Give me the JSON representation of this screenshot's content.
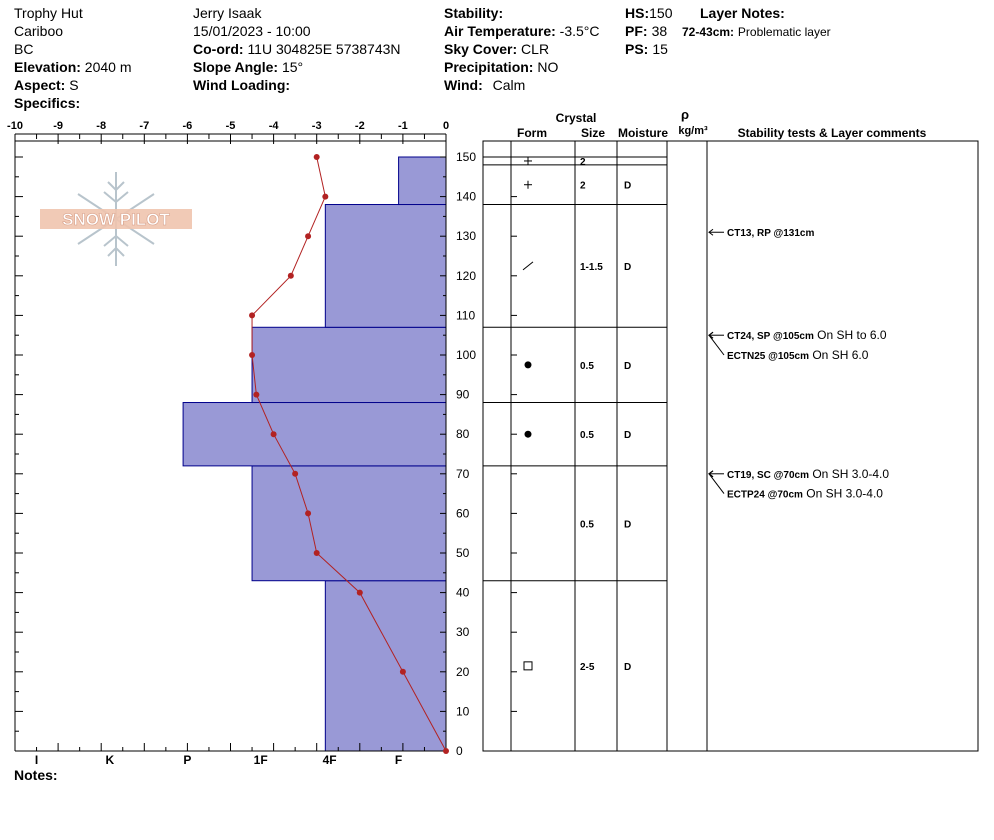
{
  "header": {
    "col1": {
      "site": "Trophy Hut",
      "region": "Cariboo",
      "province": "BC",
      "elevation_label": "Elevation:",
      "elevation_value": "2040 m",
      "aspect_label": "Aspect:",
      "aspect_value": "S",
      "specifics_label": "Specifics:"
    },
    "col2": {
      "observer": "Jerry Isaak",
      "datetime": "15/01/2023 - 10:00",
      "coord_label": "Co-ord:",
      "coord_value": "11U 304825E 5738743N",
      "slope_label": "Slope Angle:",
      "slope_value": "15°",
      "wind_loading_label": "Wind Loading:"
    },
    "col3": {
      "stability_label": "Stability:",
      "air_temp_label": "Air Temperature:",
      "air_temp_value": "-3.5°C",
      "sky_label": "Sky Cover:",
      "sky_value": "CLR",
      "precip_label": "Precipitation:",
      "precip_value": "NO",
      "wind_label": "Wind:",
      "wind_value": "Calm"
    },
    "col4": {
      "hs_label": "HS:",
      "hs_value": "150",
      "pf_label": "PF:",
      "pf_value": "38",
      "ps_label": "PS:",
      "ps_value": "15"
    },
    "layer_notes": {
      "title": "Layer Notes:",
      "range": "72-43cm:",
      "text": "Problematic layer"
    }
  },
  "notes_label": "Notes:",
  "logo_text": "SNOW PILOT",
  "colors": {
    "hardness_fill": "#9999d6",
    "hardness_stroke": "#00008b",
    "temp_line": "#b22222"
  },
  "chart_data": {
    "type": "snow-profile",
    "temp_axis": {
      "ticks": [
        "-10",
        "-9",
        "-8",
        "-7",
        "-6",
        "-5",
        "-4",
        "-3",
        "-2",
        "-1",
        "0"
      ],
      "range": [
        -10,
        0
      ]
    },
    "height_axis": {
      "ticks": [
        "0",
        "10",
        "20",
        "30",
        "40",
        "50",
        "60",
        "70",
        "80",
        "90",
        "100",
        "110",
        "120",
        "130",
        "140",
        "150"
      ],
      "range": [
        0,
        150
      ]
    },
    "hardness_axis": {
      "ticks": [
        {
          "label": "I",
          "temp": -9.5
        },
        {
          "label": "K",
          "temp": -7.8
        },
        {
          "label": "P",
          "temp": -6.0
        },
        {
          "label": "1F",
          "temp": -4.3
        },
        {
          "label": "4F",
          "temp": -2.7
        },
        {
          "label": "F",
          "temp": -1.1
        }
      ]
    },
    "hardness_layers": [
      {
        "bottom": 0,
        "top": 43,
        "temp": -2.8
      },
      {
        "bottom": 43,
        "top": 72,
        "temp": -4.5
      },
      {
        "bottom": 72,
        "top": 88,
        "temp": -6.1
      },
      {
        "bottom": 88,
        "top": 107,
        "temp": -4.5
      },
      {
        "bottom": 107,
        "top": 138,
        "temp": -2.8
      },
      {
        "bottom": 138,
        "top": 150,
        "temp": -1.1
      }
    ],
    "temperature_profile": [
      {
        "h": 150,
        "t": -3.0
      },
      {
        "h": 140,
        "t": -2.8
      },
      {
        "h": 130,
        "t": -3.2
      },
      {
        "h": 120,
        "t": -3.6
      },
      {
        "h": 110,
        "t": -4.5
      },
      {
        "h": 100,
        "t": -4.5
      },
      {
        "h": 90,
        "t": -4.4
      },
      {
        "h": 80,
        "t": -4.0
      },
      {
        "h": 70,
        "t": -3.5
      },
      {
        "h": 60,
        "t": -3.2
      },
      {
        "h": 50,
        "t": -3.0
      },
      {
        "h": 40,
        "t": -2.0
      },
      {
        "h": 20,
        "t": -1.0
      },
      {
        "h": 0,
        "t": 0.0
      }
    ],
    "table_headers": {
      "crystal": "Crystal",
      "form": "Form",
      "size": "Size",
      "moisture": "Moisture",
      "rho": "ρ",
      "density_unit": "kg/m³",
      "comments": "Stability tests & Layer comments"
    },
    "crystal_layers": [
      {
        "bottom": 148,
        "top": 150,
        "form": "+",
        "size": "2",
        "moisture": ""
      },
      {
        "bottom": 138,
        "top": 148,
        "form": "+",
        "size": "2",
        "moisture": "D"
      },
      {
        "bottom": 107,
        "top": 138,
        "form": "/",
        "size": "1-1.5",
        "moisture": "D"
      },
      {
        "bottom": 88,
        "top": 107,
        "form": "●",
        "size": "0.5",
        "moisture": "D"
      },
      {
        "bottom": 72,
        "top": 88,
        "form": "●",
        "size": "0.5",
        "moisture": "D"
      },
      {
        "bottom": 43,
        "top": 72,
        "form": "",
        "size": "0.5",
        "moisture": "D"
      },
      {
        "bottom": 0,
        "top": 43,
        "form": "□",
        "size": "2-5",
        "moisture": "D"
      }
    ],
    "stability_tests": [
      {
        "height": 131,
        "label_height": 131,
        "bold": "CT13, RP @131cm",
        "text": ""
      },
      {
        "height": 105,
        "label_height": 105,
        "bold": "CT24, SP @105cm",
        "text": "On SH to 6.0"
      },
      {
        "height": 105,
        "label_height": 100,
        "bold": "ECTN25 @105cm",
        "text": "On SH 6.0"
      },
      {
        "height": 70,
        "label_height": 70,
        "bold": "CT19, SC @70cm",
        "text": "On SH 3.0-4.0"
      },
      {
        "height": 70,
        "label_height": 65,
        "bold": "ECTP24 @70cm",
        "text": "On SH 3.0-4.0"
      }
    ]
  }
}
